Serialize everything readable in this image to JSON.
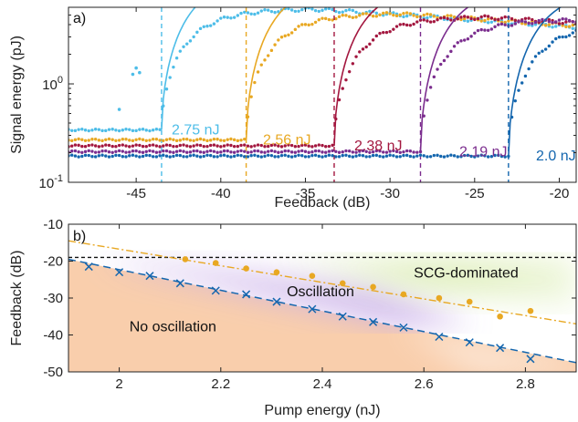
{
  "colors": {
    "cyan": "#4dbde8",
    "yellow": "#e8a823",
    "red": "#a3173f",
    "purple": "#7b2d8e",
    "blue": "#1466ae",
    "orange_fill": "#f8c9a3",
    "violet_fill": "#c9aee8",
    "green_fill": "#d9ecb0"
  },
  "chart_data": [
    {
      "type": "scatter",
      "panel_label": "a)",
      "xlabel": "Feedback (dB)",
      "ylabel": "Signal energy (pJ)",
      "xlim": [
        -49,
        -19
      ],
      "ylim": [
        0.1,
        6.0
      ],
      "yscale": "log",
      "xticks": [
        -45,
        -40,
        -35,
        -30,
        -25,
        -20
      ],
      "yticks": [
        {
          "value": 0.1,
          "base": "10",
          "exp": "-1"
        },
        {
          "value": 1.0,
          "base": "10",
          "exp": "0"
        }
      ],
      "series": [
        {
          "name": "2.75 nJ",
          "color": "#4dbde8",
          "threshold": -43.5,
          "floor": 0.34,
          "max": 5.8
        },
        {
          "name": "2.56 nJ",
          "color": "#e8a823",
          "threshold": -38.5,
          "floor": 0.27,
          "max": 5.2
        },
        {
          "name": "2.38 nJ",
          "color": "#a3173f",
          "threshold": -33.3,
          "floor": 0.235,
          "max": 4.8
        },
        {
          "name": "2.19 nJ",
          "color": "#7b2d8e",
          "threshold": -28.2,
          "floor": 0.205,
          "max": 4.5
        },
        {
          "name": "2.0 nJ",
          "color": "#1466ae",
          "threshold": -23.0,
          "floor": 0.185,
          "max": 4.2
        }
      ],
      "outliers": [
        {
          "x": -45.2,
          "y": 1.25
        },
        {
          "x": -45.0,
          "y": 1.45
        },
        {
          "x": -44.8,
          "y": 1.3
        },
        {
          "x": -46.0,
          "y": 0.55
        }
      ]
    },
    {
      "type": "scatter",
      "panel_label": "b)",
      "xlabel": "Pump energy (nJ)",
      "ylabel": "Feedback (dB)",
      "xlim": [
        1.9,
        2.9
      ],
      "ylim": [
        -50,
        -10
      ],
      "xticks": [
        2.0,
        2.2,
        2.4,
        2.6,
        2.8
      ],
      "xtick_labels": [
        "2",
        "2.2",
        "2.4",
        "2.6",
        "2.8"
      ],
      "yticks": [
        -10,
        -20,
        -30,
        -40,
        -50
      ],
      "regions": [
        {
          "label": "No oscillation",
          "x": 2.02,
          "y": -39
        },
        {
          "label": "Oscillation",
          "x": 2.33,
          "y": -29.5
        },
        {
          "label": "SCG-dominated",
          "x": 2.58,
          "y": -24.5
        }
      ],
      "threshold_line": {
        "y": -19
      },
      "series": [
        {
          "marker": "x",
          "color": "#1466ae",
          "points": [
            {
              "x": 1.94,
              "y": -21.5
            },
            {
              "x": 2.0,
              "y": -23
            },
            {
              "x": 2.06,
              "y": -24
            },
            {
              "x": 2.12,
              "y": -26
            },
            {
              "x": 2.19,
              "y": -28
            },
            {
              "x": 2.25,
              "y": -29
            },
            {
              "x": 2.31,
              "y": -31
            },
            {
              "x": 2.38,
              "y": -33
            },
            {
              "x": 2.44,
              "y": -35
            },
            {
              "x": 2.5,
              "y": -36.5
            },
            {
              "x": 2.56,
              "y": -38
            },
            {
              "x": 2.63,
              "y": -40.5
            },
            {
              "x": 2.69,
              "y": -42
            },
            {
              "x": 2.75,
              "y": -43.5
            },
            {
              "x": 2.81,
              "y": -46.5
            }
          ],
          "fit": [
            {
              "x": 1.9,
              "y": -19.5
            },
            {
              "x": 2.9,
              "y": -47.5
            }
          ]
        },
        {
          "marker": "dot",
          "color": "#e8a823",
          "points": [
            {
              "x": 2.13,
              "y": -19.5
            },
            {
              "x": 2.19,
              "y": -20.5
            },
            {
              "x": 2.25,
              "y": -22
            },
            {
              "x": 2.31,
              "y": -23
            },
            {
              "x": 2.38,
              "y": -24
            },
            {
              "x": 2.44,
              "y": -26
            },
            {
              "x": 2.5,
              "y": -27
            },
            {
              "x": 2.56,
              "y": -29
            },
            {
              "x": 2.63,
              "y": -30
            },
            {
              "x": 2.69,
              "y": -31
            },
            {
              "x": 2.75,
              "y": -35
            },
            {
              "x": 2.81,
              "y": -33.5
            }
          ],
          "fit": [
            {
              "x": 1.9,
              "y": -14.5
            },
            {
              "x": 2.9,
              "y": -37
            }
          ]
        }
      ]
    }
  ]
}
